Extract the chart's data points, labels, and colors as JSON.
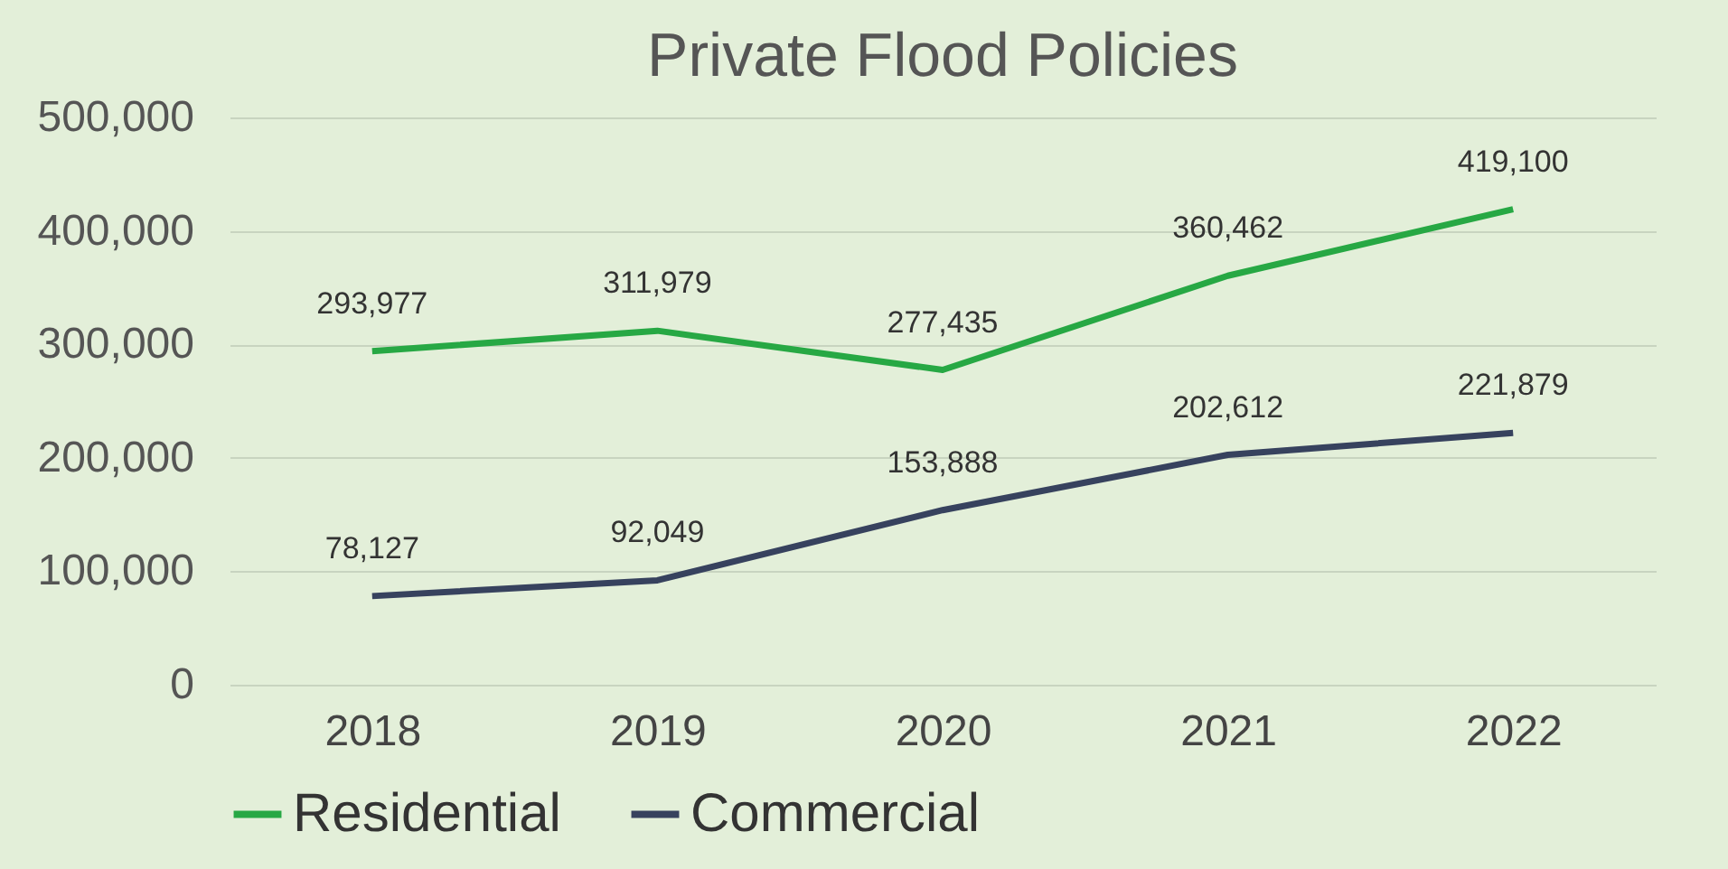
{
  "chart_data": {
    "type": "line",
    "title": "Private Flood Policies",
    "categories": [
      "2018",
      "2019",
      "2020",
      "2021",
      "2022"
    ],
    "series": [
      {
        "name": "Residential",
        "color": "#27a844",
        "values": [
          293977,
          311979,
          277435,
          360462,
          419100
        ],
        "value_labels": [
          "293,977",
          "311,979",
          "277,435",
          "360,462",
          "419,100"
        ]
      },
      {
        "name": "Commercial",
        "color": "#37425e",
        "values": [
          78127,
          92049,
          153888,
          202612,
          221879
        ],
        "value_labels": [
          "78,127",
          "92,049",
          "153,888",
          "202,612",
          "221,879"
        ]
      }
    ],
    "ylim": [
      0,
      500000
    ],
    "yticks": [
      0,
      {
        "value": 100000,
        "label": "100,000"
      },
      {
        "value": 200000,
        "label": "200,000"
      },
      {
        "value": 300000,
        "label": "300,000"
      },
      {
        "value": 400000,
        "label": "400,000"
      },
      {
        "value": 500000,
        "label": "500,000"
      }
    ],
    "grid": "y",
    "legend": "bottom",
    "marker": "none",
    "line_style": "solid"
  }
}
